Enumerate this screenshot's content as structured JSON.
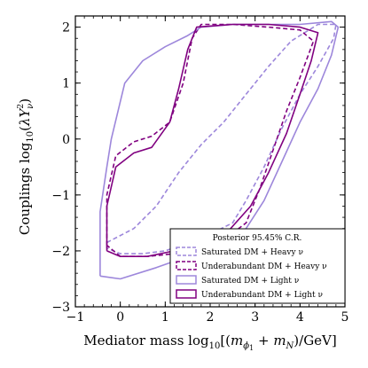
{
  "chart_data": {
    "type": "line",
    "xlabel": "Mediator mass log10[(mϕ1 + mN)/GeV]",
    "xlabel_parts": {
      "prefix": "Mediator mass log",
      "log_sub": "10",
      "open": "[(",
      "m1": "m",
      "m1_sub": "ϕ",
      "m1_subsub": "1",
      "plus": " + ",
      "m2": "m",
      "m2_sub": "N",
      "close": ")/GeV]"
    },
    "ylabel": "Couplings log10(λY²ν)",
    "ylabel_parts": {
      "prefix": "Couplings log",
      "log_sub": "10",
      "open": "(",
      "lambda": "λY",
      "sup": "2",
      "sub": "ν",
      "close": ")"
    },
    "xlim": [
      -1,
      5
    ],
    "ylim": [
      -3,
      2.2
    ],
    "xticks": [
      "−1",
      "0",
      "1",
      "2",
      "3",
      "4",
      "5"
    ],
    "yticks": [
      "−3",
      "−2",
      "−1",
      "0",
      "1",
      "2"
    ],
    "xtick_values": [
      -1,
      0,
      1,
      2,
      3,
      4,
      5
    ],
    "ytick_values": [
      -3,
      -2,
      -1,
      0,
      1,
      2
    ],
    "grid": false,
    "legend_placement": "bottom-right",
    "legend_title": "Posterior 95.45% C.R.",
    "series": [
      {
        "name": "Saturated DM + Heavy ν",
        "color": "#9d87db",
        "dash": "dashed",
        "points": [
          [
            -0.3,
            -1.85
          ],
          [
            0.3,
            -1.6
          ],
          [
            0.8,
            -1.2
          ],
          [
            1.3,
            -0.6
          ],
          [
            1.8,
            -0.1
          ],
          [
            2.3,
            0.3
          ],
          [
            2.8,
            0.8
          ],
          [
            3.3,
            1.3
          ],
          [
            3.8,
            1.75
          ],
          [
            4.4,
            2.05
          ],
          [
            4.8,
            2.05
          ],
          [
            4.75,
            1.8
          ],
          [
            4.4,
            1.3
          ],
          [
            4.0,
            0.8
          ],
          [
            3.6,
            0.2
          ],
          [
            3.2,
            -0.5
          ],
          [
            2.8,
            -1.1
          ],
          [
            2.5,
            -1.5
          ],
          [
            2.0,
            -1.7
          ],
          [
            1.5,
            -1.85
          ],
          [
            1.0,
            -2.0
          ],
          [
            0.5,
            -2.05
          ],
          [
            0.0,
            -2.05
          ],
          [
            -0.3,
            -1.95
          ],
          [
            -0.3,
            -1.85
          ]
        ]
      },
      {
        "name": "Underabundant DM + Heavy ν",
        "color": "#800080",
        "dash": "dashed",
        "points": [
          [
            -0.3,
            -1.9
          ],
          [
            -0.3,
            -1.0
          ],
          [
            -0.1,
            -0.3
          ],
          [
            0.3,
            -0.05
          ],
          [
            0.7,
            0.05
          ],
          [
            1.1,
            0.3
          ],
          [
            1.4,
            1.0
          ],
          [
            1.6,
            1.8
          ],
          [
            1.8,
            2.05
          ],
          [
            2.5,
            2.05
          ],
          [
            3.3,
            2.0
          ],
          [
            4.0,
            1.95
          ],
          [
            4.3,
            1.75
          ],
          [
            4.0,
            1.1
          ],
          [
            3.7,
            0.5
          ],
          [
            3.4,
            -0.2
          ],
          [
            3.1,
            -0.9
          ],
          [
            2.8,
            -1.5
          ],
          [
            2.3,
            -1.8
          ],
          [
            1.8,
            -1.95
          ],
          [
            1.2,
            -2.05
          ],
          [
            0.6,
            -2.1
          ],
          [
            0.0,
            -2.1
          ],
          [
            -0.3,
            -1.9
          ]
        ]
      },
      {
        "name": "Saturated DM + Light ν",
        "color": "#9d87db",
        "dash": "solid",
        "points": [
          [
            -0.45,
            -2.45
          ],
          [
            -0.45,
            -1.3
          ],
          [
            -0.3,
            -0.5
          ],
          [
            -0.2,
            0.0
          ],
          [
            0.1,
            1.0
          ],
          [
            0.5,
            1.4
          ],
          [
            1.0,
            1.65
          ],
          [
            1.5,
            1.85
          ],
          [
            1.8,
            2.0
          ],
          [
            2.5,
            2.05
          ],
          [
            3.3,
            2.05
          ],
          [
            4.0,
            2.05
          ],
          [
            4.7,
            2.1
          ],
          [
            4.85,
            2.0
          ],
          [
            4.7,
            1.5
          ],
          [
            4.4,
            0.9
          ],
          [
            4.0,
            0.3
          ],
          [
            3.6,
            -0.4
          ],
          [
            3.2,
            -1.1
          ],
          [
            2.8,
            -1.6
          ],
          [
            2.2,
            -1.9
          ],
          [
            1.5,
            -2.1
          ],
          [
            0.8,
            -2.3
          ],
          [
            0.0,
            -2.5
          ],
          [
            -0.45,
            -2.45
          ]
        ]
      },
      {
        "name": "Underabundant DM + Light ν",
        "color": "#800080",
        "dash": "solid",
        "points": [
          [
            -0.3,
            -2.0
          ],
          [
            -0.3,
            -1.2
          ],
          [
            -0.1,
            -0.5
          ],
          [
            0.3,
            -0.25
          ],
          [
            0.7,
            -0.15
          ],
          [
            1.1,
            0.3
          ],
          [
            1.3,
            0.9
          ],
          [
            1.5,
            1.6
          ],
          [
            1.7,
            2.0
          ],
          [
            2.5,
            2.05
          ],
          [
            3.3,
            2.05
          ],
          [
            4.0,
            2.0
          ],
          [
            4.4,
            1.9
          ],
          [
            4.25,
            1.4
          ],
          [
            4.0,
            0.8
          ],
          [
            3.7,
            0.1
          ],
          [
            3.3,
            -0.6
          ],
          [
            2.9,
            -1.2
          ],
          [
            2.4,
            -1.65
          ],
          [
            1.8,
            -1.9
          ],
          [
            1.2,
            -2.0
          ],
          [
            0.6,
            -2.1
          ],
          [
            0.0,
            -2.1
          ],
          [
            -0.3,
            -2.0
          ]
        ]
      }
    ]
  }
}
